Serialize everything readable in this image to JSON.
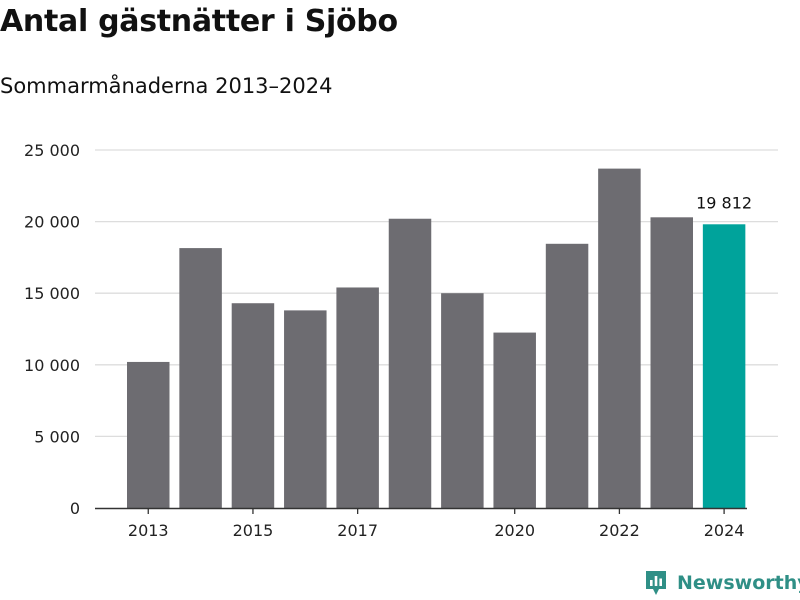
{
  "header": {
    "title": "Antal gästnätter i Sjöbo",
    "subtitle": "Sommarmånaderna 2013–2024"
  },
  "brand": {
    "name": "Newsworthy",
    "color": "#2f8f86"
  },
  "colors": {
    "bar_default": "#6d6c71",
    "bar_highlight": "#00a39b",
    "grid": "#dddddd",
    "axis": "#333333"
  },
  "chart_data": {
    "type": "bar",
    "categories": [
      "2013",
      "2014",
      "2015",
      "2016",
      "2017",
      "2018",
      "2019",
      "2020",
      "2021",
      "2022",
      "2023",
      "2024"
    ],
    "values": [
      10200,
      18150,
      14300,
      13800,
      15400,
      20200,
      15000,
      12250,
      18450,
      23700,
      20300,
      19812
    ],
    "highlight_index": 11,
    "data_labels": [
      {
        "index": 11,
        "text": "19 812"
      }
    ],
    "x_tick_labels": [
      "2013",
      "2015",
      "2017",
      "2020",
      "2022",
      "2024"
    ],
    "y_ticks": [
      0,
      5000,
      10000,
      15000,
      20000,
      25000
    ],
    "y_tick_labels": [
      "0",
      "5 000",
      "10 000",
      "15 000",
      "20 000",
      "25 000"
    ],
    "ylim": [
      0,
      25000
    ],
    "grid": true,
    "legend": "none",
    "xlabel": "",
    "ylabel": ""
  }
}
